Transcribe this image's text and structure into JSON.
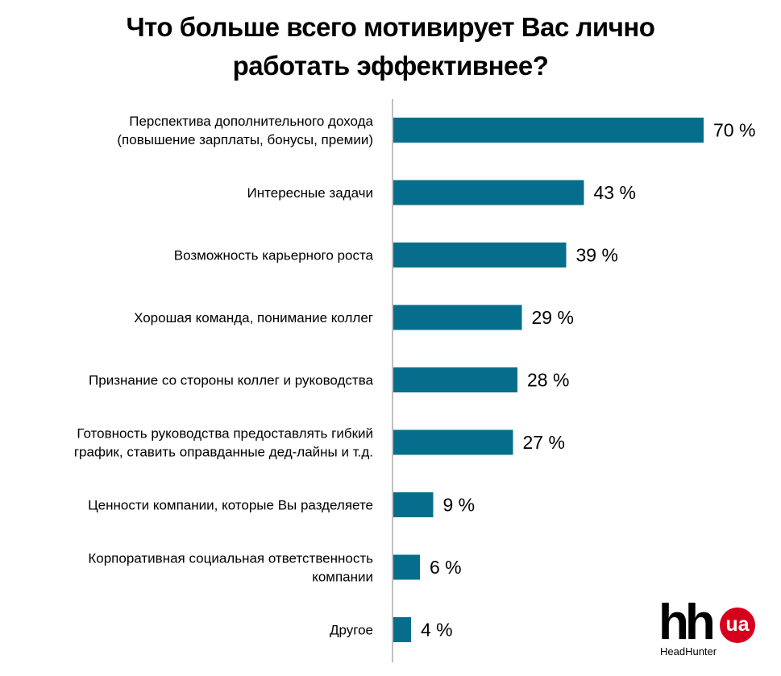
{
  "title_line1": "Что больше всего мотивирует Вас лично",
  "title_line2": "работать эффективнее?",
  "colors": {
    "bar": "#066E8C",
    "axis": "#7f7f7f",
    "logo_ua": "#d6001c"
  },
  "logo": {
    "hh": "hh",
    "ua": "ua",
    "sub": "HeadHunter"
  },
  "chart_data": {
    "type": "bar",
    "orientation": "horizontal",
    "categories": [
      [
        "Перспектива дополнительного дохода",
        "(повышение зарплаты, бонусы, премии)"
      ],
      [
        "Интересные задачи"
      ],
      [
        "Возможность карьерного роста"
      ],
      [
        "Хорошая команда, понимание коллег"
      ],
      [
        "Признание со стороны коллег и руководства"
      ],
      [
        "Готовность руководства предоставлять гибкий",
        "график, ставить оправданные дед-лайны и т.д."
      ],
      [
        "Ценности компании, которые Вы разделяете"
      ],
      [
        "Корпоративная социальная ответственность",
        "компании"
      ],
      [
        "Другое"
      ]
    ],
    "values": [
      70,
      43,
      39,
      29,
      28,
      27,
      9,
      6,
      4
    ],
    "value_labels": [
      "70 %",
      "43 %",
      "39 %",
      "29 %",
      "28 %",
      "27 %",
      "9 %",
      "6 %",
      "4 %"
    ],
    "unit": "%",
    "grid": false,
    "legend": "none"
  }
}
